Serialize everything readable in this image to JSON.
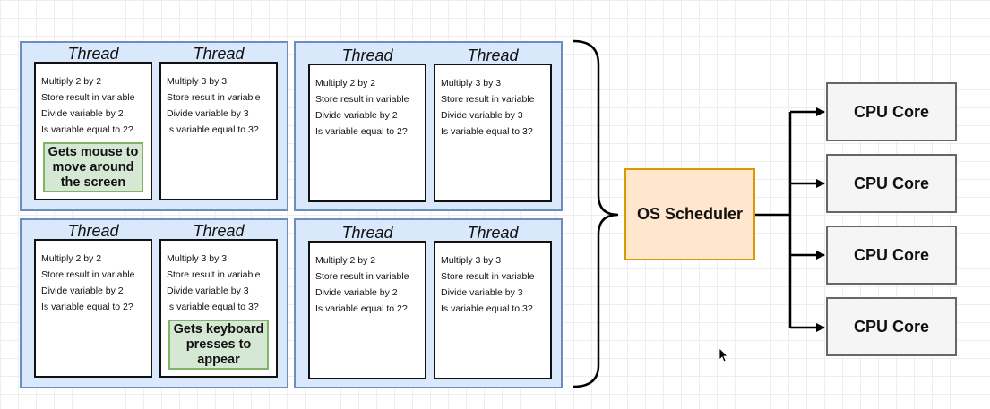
{
  "groups": [
    {
      "threads": [
        {
          "title": "Thread",
          "steps": [
            "Multiply 2 by 2",
            "Store result in variable",
            "Divide variable by 2",
            "Is variable equal to 2?"
          ]
        },
        {
          "title": "Thread",
          "steps": [
            "Multiply 3 by 3",
            "Store result in variable",
            "Divide variable by 3",
            "Is variable equal to 3?"
          ]
        }
      ],
      "note": "Gets mouse to move around the screen"
    },
    {
      "threads": [
        {
          "title": "Thread",
          "steps": [
            "Multiply 2 by 2",
            "Store result in variable",
            "Divide variable by 2",
            "Is variable equal to 2?"
          ]
        },
        {
          "title": "Thread",
          "steps": [
            "Multiply 3 by 3",
            "Store result in variable",
            "Divide variable by 3",
            "Is variable equal to 3?"
          ]
        }
      ]
    },
    {
      "threads": [
        {
          "title": "Thread",
          "steps": [
            "Multiply 2 by 2",
            "Store result in variable",
            "Divide variable by 2",
            "Is variable equal to 2?"
          ]
        },
        {
          "title": "Thread",
          "steps": [
            "Multiply 3 by 3",
            "Store result in variable",
            "Divide variable by 3",
            "Is variable equal to 3?"
          ]
        }
      ],
      "note": "Gets keyboard presses to appear"
    },
    {
      "threads": [
        {
          "title": "Thread",
          "steps": [
            "Multiply 2 by 2",
            "Store result in variable",
            "Divide variable by 2",
            "Is variable equal to 2?"
          ]
        },
        {
          "title": "Thread",
          "steps": [
            "Multiply 3 by 3",
            "Store result in variable",
            "Divide variable by 3",
            "Is variable equal to 3?"
          ]
        }
      ]
    }
  ],
  "scheduler": {
    "label": "OS Scheduler"
  },
  "cores": [
    {
      "label": "CPU Core"
    },
    {
      "label": "CPU Core"
    },
    {
      "label": "CPU Core"
    },
    {
      "label": "CPU Core"
    }
  ],
  "colors": {
    "group_fill": "#dae8fc",
    "group_stroke": "#6c8ebf",
    "note_fill": "#d5e8d4",
    "note_stroke": "#82b366",
    "scheduler_fill": "#ffe6cc",
    "scheduler_stroke": "#d79b00",
    "core_fill": "#f5f5f5",
    "core_stroke": "#666666"
  }
}
